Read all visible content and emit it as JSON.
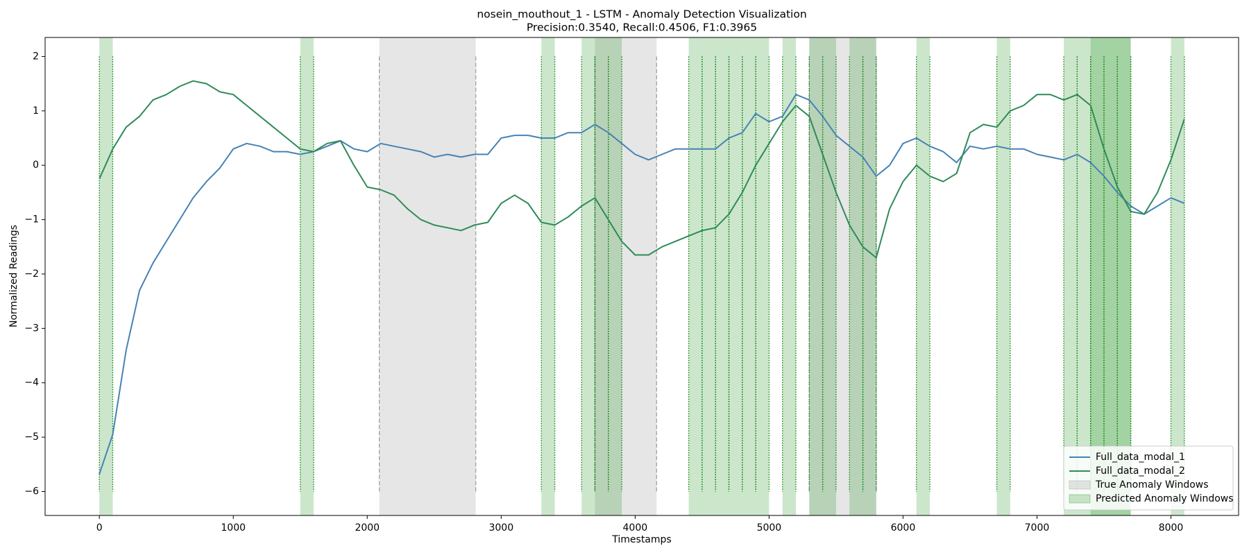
{
  "chart_data": {
    "type": "line",
    "title": "nosein_mouthout_1 - LSTM - Anomaly Detection Visualization",
    "subtitle": "Precision:0.3540, Recall:0.4506, F1:0.3965",
    "x_label": "Timestamps",
    "y_label": "Normalized Readings",
    "x": [
      0,
      100,
      200,
      300,
      400,
      500,
      600,
      700,
      800,
      900,
      1000,
      1100,
      1200,
      1300,
      1400,
      1500,
      1600,
      1700,
      1800,
      1900,
      2000,
      2100,
      2200,
      2300,
      2400,
      2500,
      2600,
      2700,
      2800,
      2900,
      3000,
      3100,
      3200,
      3300,
      3400,
      3500,
      3600,
      3700,
      3800,
      3900,
      4000,
      4100,
      4200,
      4300,
      4400,
      4500,
      4600,
      4700,
      4800,
      4900,
      5000,
      5100,
      5200,
      5300,
      5400,
      5500,
      5600,
      5700,
      5800,
      5900,
      6000,
      6100,
      6200,
      6300,
      6400,
      6500,
      6600,
      6700,
      6800,
      6900,
      7000,
      7100,
      7200,
      7300,
      7400,
      7500,
      7600,
      7700,
      7800,
      7900,
      8000,
      8100
    ],
    "series": [
      {
        "name": "Full_data_modal_1",
        "color": "#4682b4",
        "values": [
          -5.68,
          -4.95,
          -3.4,
          -2.3,
          -1.8,
          -1.4,
          -1.0,
          -0.6,
          -0.3,
          -0.05,
          0.3,
          0.4,
          0.35,
          0.25,
          0.25,
          0.2,
          0.25,
          0.35,
          0.45,
          0.3,
          0.25,
          0.4,
          0.35,
          0.3,
          0.25,
          0.15,
          0.2,
          0.15,
          0.2,
          0.2,
          0.5,
          0.55,
          0.55,
          0.5,
          0.5,
          0.6,
          0.6,
          0.75,
          0.6,
          0.4,
          0.2,
          0.1,
          0.2,
          0.3,
          0.3,
          0.3,
          0.3,
          0.5,
          0.6,
          0.95,
          0.8,
          0.9,
          1.3,
          1.2,
          0.9,
          0.55,
          0.35,
          0.15,
          -0.2,
          0.0,
          0.4,
          0.5,
          0.35,
          0.25,
          0.05,
          0.35,
          0.3,
          0.35,
          0.3,
          0.3,
          0.2,
          0.15,
          0.1,
          0.2,
          0.05,
          -0.2,
          -0.5,
          -0.75,
          -0.9,
          -0.75,
          -0.6,
          -0.7
        ]
      },
      {
        "name": "Full_data_modal_2",
        "color": "#2e8b57",
        "values": [
          -0.25,
          0.3,
          0.7,
          0.9,
          1.2,
          1.3,
          1.45,
          1.55,
          1.5,
          1.35,
          1.3,
          1.1,
          0.9,
          0.7,
          0.5,
          0.3,
          0.25,
          0.4,
          0.45,
          0.0,
          -0.4,
          -0.45,
          -0.55,
          -0.8,
          -1.0,
          -1.1,
          -1.15,
          -1.2,
          -1.1,
          -1.05,
          -0.7,
          -0.55,
          -0.7,
          -1.05,
          -1.1,
          -0.95,
          -0.75,
          -0.6,
          -1.0,
          -1.4,
          -1.65,
          -1.65,
          -1.5,
          -1.4,
          -1.3,
          -1.2,
          -1.15,
          -0.9,
          -0.5,
          0.0,
          0.4,
          0.8,
          1.1,
          0.9,
          0.2,
          -0.5,
          -1.1,
          -1.5,
          -1.7,
          -0.8,
          -0.3,
          0.0,
          -0.2,
          -0.3,
          -0.15,
          0.6,
          0.75,
          0.7,
          1.0,
          1.1,
          1.3,
          1.3,
          1.2,
          1.3,
          1.1,
          0.3,
          -0.4,
          -0.85,
          -0.9,
          -0.5,
          0.1,
          0.85
        ]
      }
    ],
    "windows": [
      {
        "name": "True Anomaly Windows",
        "color": "#808080",
        "ranges": [
          [
            2090,
            2810
          ],
          [
            3700,
            4160
          ],
          [
            5300,
            5800
          ]
        ]
      },
      {
        "name": "Predicted Anomaly Windows",
        "color": "#008000",
        "ranges": [
          [
            0,
            100
          ],
          [
            1500,
            1600
          ],
          [
            3300,
            3400
          ],
          [
            3600,
            3700
          ],
          [
            3700,
            3800
          ],
          [
            3800,
            3900
          ],
          [
            4400,
            4500
          ],
          [
            4500,
            4600
          ],
          [
            4600,
            4700
          ],
          [
            4700,
            4800
          ],
          [
            4800,
            4900
          ],
          [
            4900,
            5000
          ],
          [
            5100,
            5200
          ],
          [
            5300,
            5400
          ],
          [
            5400,
            5500
          ],
          [
            5600,
            5700
          ],
          [
            5700,
            5800
          ],
          [
            6100,
            6200
          ],
          [
            6700,
            6800
          ],
          [
            7200,
            7300
          ],
          [
            7300,
            7400
          ],
          [
            7400,
            7500
          ],
          [
            7500,
            7600
          ],
          [
            7600,
            7700
          ],
          [
            7400,
            7700
          ],
          [
            8000,
            8100
          ]
        ]
      }
    ],
    "xlim": [
      -405,
      8505
    ],
    "ylim": [
      -6.44,
      2.35
    ],
    "xticks": [
      0,
      1000,
      2000,
      3000,
      4000,
      5000,
      6000,
      7000,
      8000
    ],
    "yticks": [
      {
        "value": -6,
        "label": "−6"
      },
      {
        "value": -5,
        "label": "−5"
      },
      {
        "value": -4,
        "label": "−4"
      },
      {
        "value": -3,
        "label": "−3"
      },
      {
        "value": -2,
        "label": "−2"
      },
      {
        "value": -1,
        "label": "−1"
      },
      0,
      1,
      2
    ],
    "legend": "lower right"
  }
}
